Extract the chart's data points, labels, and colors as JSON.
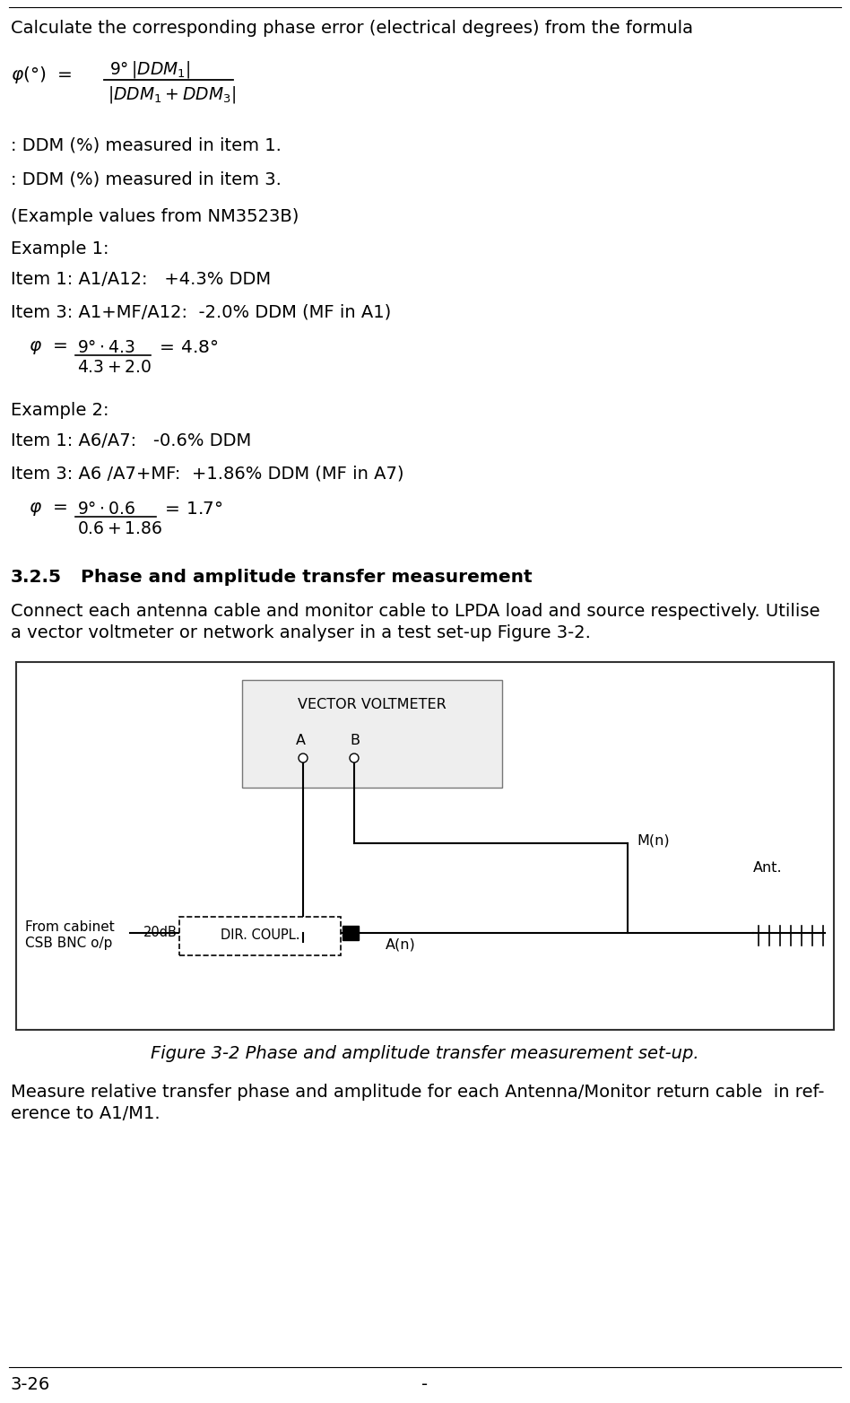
{
  "bg_color": "#ffffff",
  "text_color": "#000000",
  "title_line": "Calculate the corresponding phase error (electrical degrees) from the formula",
  "ddm1_label": ": DDM (%) measured in item 1.",
  "ddm3_label": ": DDM (%) measured in item 3.",
  "example_note": "(Example values from NM3523B)",
  "example1_title": "Example 1:",
  "example1_item1": "Item 1: A1/A12:   +4.3% DDM",
  "example1_item3": "Item 3: A1+MF/A12:  -2.0% DDM (MF in A1)",
  "example2_title": "Example 2:",
  "example2_item1": "Item 1: A6/A7:   -0.6% DDM",
  "example2_item3": "Item 3: A6 /A7+MF:  +1.86% DDM (MF in A7)",
  "section_title_num": "3.2.5",
  "section_title_text": "Phase and amplitude transfer measurement",
  "section_body1": "Connect each antenna cable and monitor cable to LPDA load and source respectively. Utilise",
  "section_body2": "a vector voltmeter or network analyser in a test set-up Figure 3-2.",
  "figure_caption": "Figure 3-2 Phase and amplitude transfer measurement set-up.",
  "measure_line1": "Measure relative transfer phase and amplitude for each Antenna/Monitor return cable  in ref-",
  "measure_line2": "erence to A1/M1.",
  "footer_left": "3-26",
  "footer_center": "-",
  "fs_body": 14.0,
  "fs_formula": 13.5,
  "fs_section": 14.5,
  "fs_small": 11.5
}
